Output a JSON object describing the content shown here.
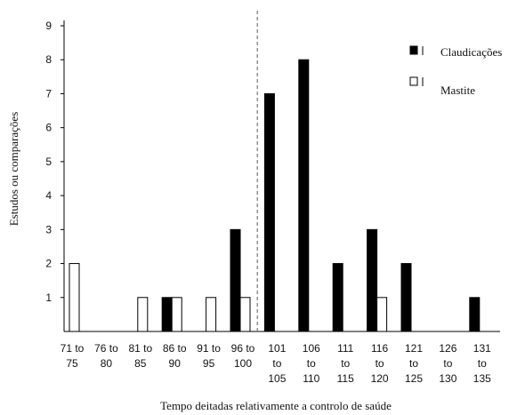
{
  "chart_data": {
    "type": "bar",
    "xlabel": "Tempo deitadas relativamente a controlo de saúde",
    "ylabel": "Estudos ou comparações",
    "ylim": [
      0,
      9
    ],
    "yticks": [
      1,
      2,
      3,
      4,
      5,
      6,
      7,
      8,
      9
    ],
    "grid": false,
    "legend_position": "top-right",
    "categories": [
      [
        "71 to",
        "75"
      ],
      [
        "76 to",
        "80"
      ],
      [
        "81 to",
        "85"
      ],
      [
        "86 to",
        "90"
      ],
      [
        "91 to",
        "95"
      ],
      [
        "96 to",
        "100"
      ],
      [
        "101",
        "to",
        "105"
      ],
      [
        "106",
        "to",
        "110"
      ],
      [
        "111",
        "to",
        "115"
      ],
      [
        "116",
        "to",
        "120"
      ],
      [
        "121",
        "to",
        "125"
      ],
      [
        "126",
        "to",
        "130"
      ],
      [
        "131",
        "to",
        "135"
      ]
    ],
    "reference_line_after_category": "96 to 100",
    "series": [
      {
        "name": "Claudicações",
        "color": "#000000",
        "fill": "#000000",
        "values": [
          0,
          0,
          0,
          1,
          0,
          3,
          7,
          8,
          2,
          3,
          2,
          0,
          1
        ]
      },
      {
        "name": "Mastite",
        "color": "#000000",
        "fill": "#ffffff",
        "values": [
          2,
          0,
          1,
          1,
          1,
          1,
          0,
          0,
          0,
          1,
          0,
          0,
          0
        ]
      }
    ]
  }
}
